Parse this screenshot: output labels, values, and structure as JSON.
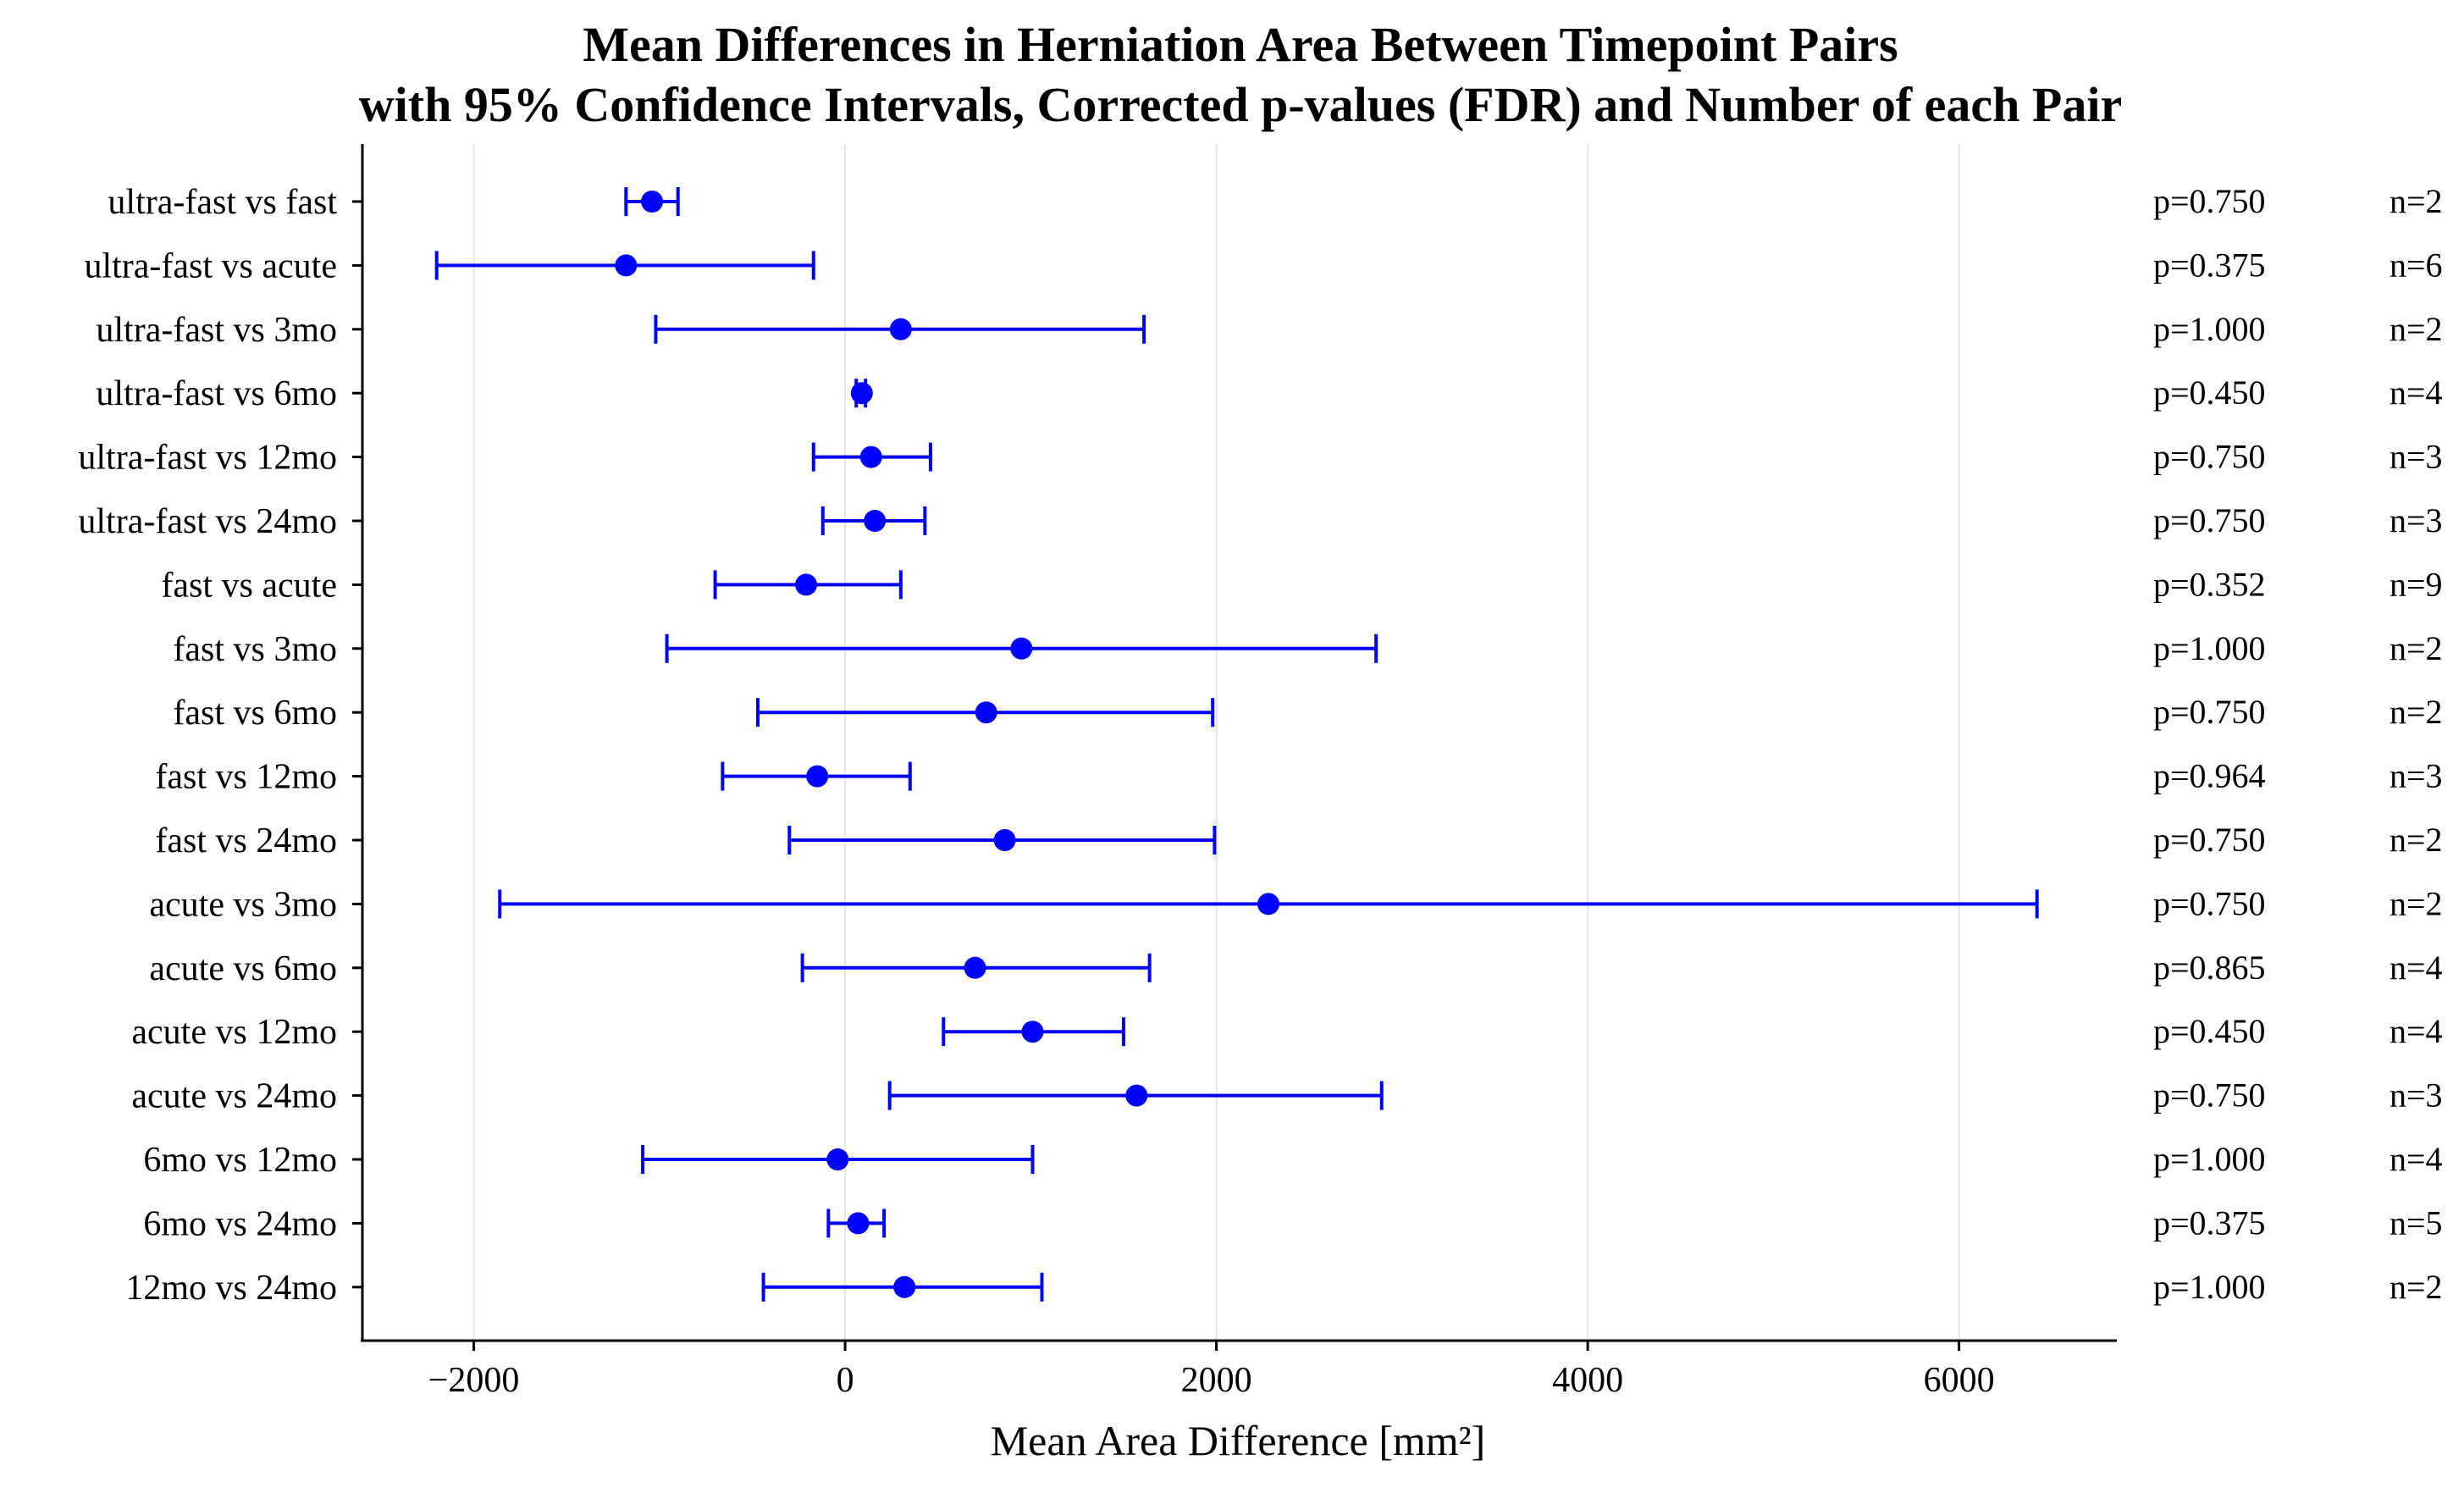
{
  "chart_data": {
    "type": "scatter",
    "title": "Mean Differences in Herniation Area Between Timepoint Pairs",
    "subtitle": "with 95% Confidence Intervals, Corrected p-values (FDR) and Number of each Pair",
    "xlabel": "Mean Area Difference [mm²]",
    "ylabel": "",
    "xlim": [
      -2600,
      6850
    ],
    "xticks": [
      -2000,
      0,
      2000,
      4000,
      6000
    ],
    "xtick_labels": [
      "−2000",
      "0",
      "2000",
      "4000",
      "6000"
    ],
    "grid": "vertical gridlines on",
    "legend": "none",
    "colors": {
      "points": "#0000ff",
      "grid": "#e4e4e4",
      "axis": "#000000"
    },
    "categories": [
      "ultra-fast vs fast",
      "ultra-fast vs acute",
      "ultra-fast vs 3mo",
      "ultra-fast vs 6mo",
      "ultra-fast vs 12mo",
      "ultra-fast vs 24mo",
      "fast vs acute",
      "fast vs 3mo",
      "fast vs 6mo",
      "fast vs 12mo",
      "fast vs 24mo",
      "acute vs 3mo",
      "acute vs 6mo",
      "acute vs 12mo",
      "acute vs 24mo",
      "6mo vs 12mo",
      "6mo vs 24mo",
      "12mo vs 24mo"
    ],
    "mean": [
      -1040,
      -1180,
      300,
      90,
      140,
      160,
      -210,
      950,
      760,
      -150,
      860,
      2280,
      700,
      1010,
      1570,
      -40,
      70,
      320
    ],
    "ci_low": [
      -1180,
      -2200,
      -1020,
      60,
      -170,
      -120,
      -700,
      -960,
      -470,
      -660,
      -300,
      -1860,
      -230,
      530,
      240,
      -1090,
      -90,
      -440
    ],
    "ci_high": [
      -900,
      -170,
      1610,
      110,
      460,
      430,
      300,
      2860,
      1980,
      350,
      1990,
      6420,
      1640,
      1500,
      2890,
      1010,
      210,
      1060
    ],
    "p_values": [
      "p=0.750",
      "p=0.375",
      "p=1.000",
      "p=0.450",
      "p=0.750",
      "p=0.750",
      "p=0.352",
      "p=1.000",
      "p=0.750",
      "p=0.964",
      "p=0.750",
      "p=0.750",
      "p=0.865",
      "p=0.450",
      "p=0.750",
      "p=1.000",
      "p=0.375",
      "p=1.000"
    ],
    "n_labels": [
      "n=2",
      "n=6",
      "n=2",
      "n=4",
      "n=3",
      "n=3",
      "n=9",
      "n=2",
      "n=2",
      "n=3",
      "n=2",
      "n=2",
      "n=4",
      "n=4",
      "n=3",
      "n=4",
      "n=5",
      "n=2"
    ]
  }
}
